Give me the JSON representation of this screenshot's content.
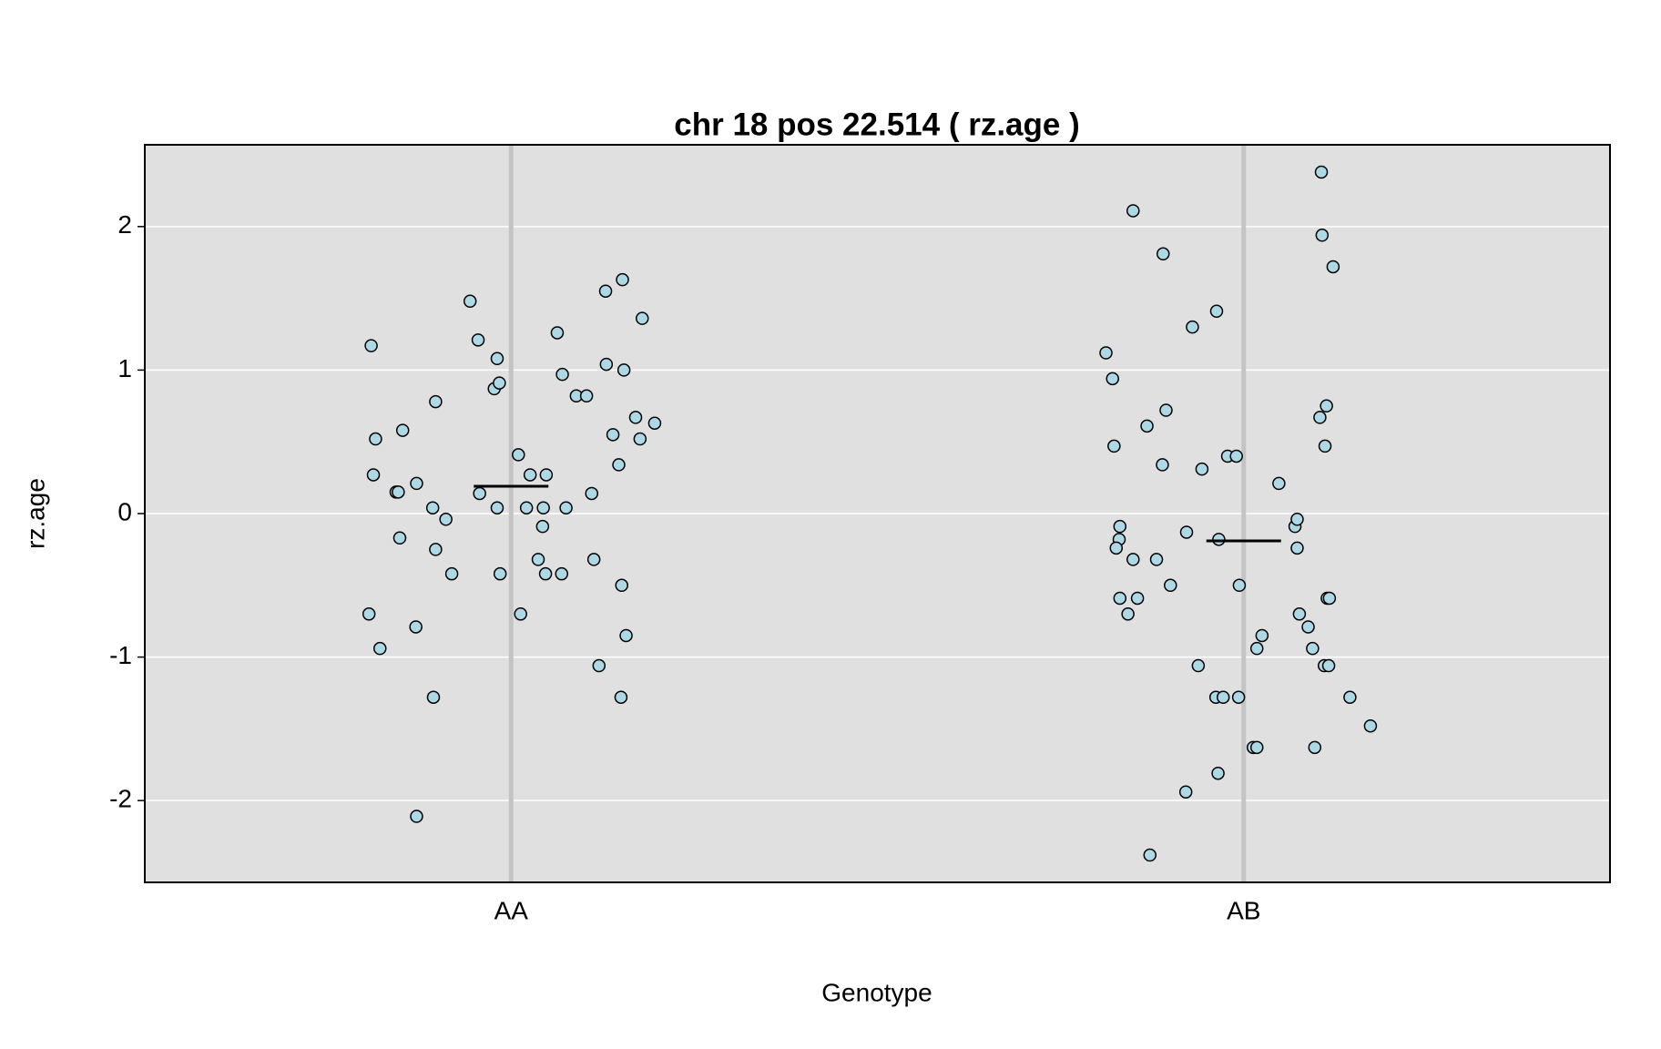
{
  "chart_data": {
    "type": "scatter",
    "title": "chr 18 pos 22.514 ( rz.age )",
    "x_label": "Genotype",
    "y_label": "rz.age",
    "xlim": [
      0.5,
      2.5
    ],
    "ylim": [
      -2.57,
      2.57
    ],
    "xticks": [
      {
        "value": 1,
        "label": "AA"
      },
      {
        "value": 2,
        "label": "AB"
      }
    ],
    "yticks": [
      -2,
      -1,
      0,
      1,
      2
    ],
    "grid": true,
    "color": "#add8e6",
    "mean_color": "#000000",
    "means": [
      0.19,
      -0.19
    ],
    "points": {
      "x": [
        0.809,
        0.815,
        0.812,
        0.852,
        0.843,
        0.846,
        0.848,
        0.806,
        0.821,
        0.87,
        0.871,
        0.871,
        0.894,
        0.897,
        0.893,
        0.897,
        0.911,
        0.919,
        0.944,
        0.955,
        0.957,
        0.977,
        0.981,
        0.984,
        0.981,
        0.985,
        1.01,
        1.013,
        1.021,
        1.026,
        1.048,
        1.044,
        1.043,
        1.037,
        1.047,
        1.063,
        1.069,
        1.07,
        1.075,
        1.089,
        1.103,
        1.11,
        1.113,
        1.12,
        1.129,
        1.13,
        1.139,
        1.147,
        1.15,
        1.151,
        1.152,
        1.154,
        1.157,
        1.17,
        1.176,
        1.179,
        1.196,
        1.812,
        1.821,
        1.823,
        1.831,
        1.83,
        1.826,
        1.849,
        1.849,
        1.831,
        1.842,
        1.855,
        1.868,
        1.872,
        1.881,
        1.889,
        1.89,
        1.894,
        1.9,
        1.921,
        1.922,
        1.93,
        1.938,
        1.943,
        1.962,
        1.963,
        1.965,
        1.966,
        1.972,
        1.978,
        1.99,
        1.993,
        1.994,
        2.013,
        2.018,
        2.018,
        2.025,
        2.048,
        2.07,
        2.073,
        2.073,
        2.076,
        2.088,
        2.094,
        2.097,
        2.104,
        2.106,
        2.107,
        2.11,
        2.111,
        2.113,
        2.114,
        2.117,
        2.116,
        2.122,
        2.145,
        2.173
      ],
      "y": [
        1.17,
        0.52,
        0.27,
        0.58,
        0.15,
        0.15,
        -0.17,
        -0.7,
        -0.94,
        -0.79,
        0.21,
        -2.11,
        -1.28,
        0.78,
        0.04,
        -0.25,
        -0.04,
        -0.42,
        1.48,
        1.21,
        0.14,
        0.87,
        1.08,
        0.91,
        0.04,
        -0.42,
        0.41,
        -0.7,
        0.04,
        0.27,
        0.27,
        0.04,
        -0.09,
        -0.32,
        -0.42,
        1.26,
        -0.42,
        0.97,
        0.04,
        0.82,
        0.82,
        0.14,
        -0.32,
        -1.06,
        1.55,
        1.04,
        0.55,
        0.34,
        -1.28,
        -0.5,
        1.63,
        1.0,
        -0.85,
        0.67,
        0.52,
        1.36,
        0.63,
        1.12,
        0.94,
        0.47,
        -0.09,
        -0.18,
        -0.24,
        2.11,
        -0.32,
        -0.59,
        -0.7,
        -0.59,
        0.61,
        -2.38,
        -0.32,
        0.34,
        1.81,
        0.72,
        -0.5,
        -1.94,
        -0.13,
        1.3,
        -1.06,
        0.31,
        -1.28,
        1.41,
        -1.81,
        -0.18,
        -1.28,
        0.4,
        0.4,
        -1.28,
        -0.5,
        -1.63,
        -1.63,
        -0.94,
        -0.85,
        0.21,
        -0.09,
        -0.04,
        -0.24,
        -0.7,
        -0.79,
        -0.94,
        -1.63,
        0.67,
        2.38,
        1.94,
        -1.06,
        0.47,
        0.75,
        -0.59,
        -0.59,
        -1.06,
        1.72,
        -1.28,
        -1.48
      ]
    }
  }
}
